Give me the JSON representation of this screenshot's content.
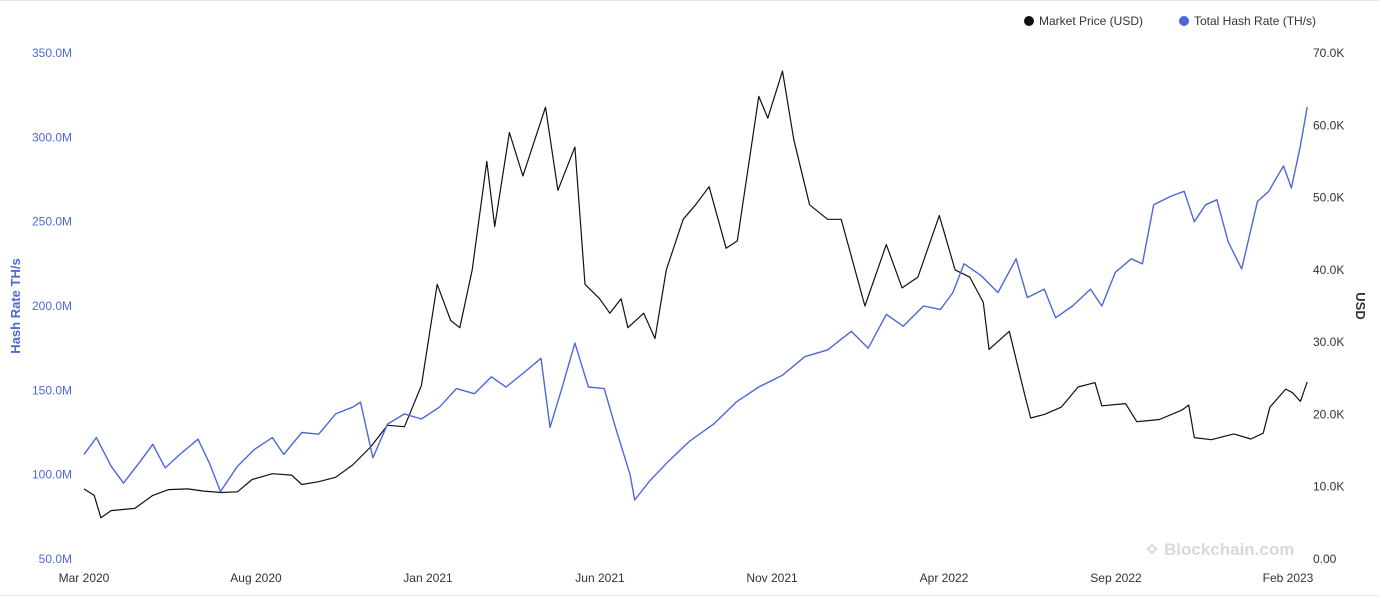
{
  "chart_data": {
    "type": "line",
    "x_ticks": [
      "Mar 2020",
      "Aug 2020",
      "Jan 2021",
      "Jun 2021",
      "Nov 2021",
      "Apr 2022",
      "Sep 2022",
      "Feb 2023"
    ],
    "y_left": {
      "label": "Hash Rate TH/s",
      "ticks": [
        "50.0M",
        "100.0M",
        "150.0M",
        "200.0M",
        "250.0M",
        "300.0M",
        "350.0M"
      ],
      "range": [
        50000000,
        350000000
      ]
    },
    "y_right": {
      "label": "USD",
      "ticks": [
        "0.00",
        "10.0K",
        "20.0K",
        "30.0K",
        "40.0K",
        "50.0K",
        "60.0K",
        "70.0K"
      ],
      "range": [
        0,
        70000
      ]
    },
    "legend": {
      "position": "top-right"
    },
    "series": [
      {
        "name": "Market Price (USD)",
        "axis": "right",
        "color": "#111111",
        "points": [
          [
            "2020-03-01",
            9700
          ],
          [
            "2020-03-10",
            8800
          ],
          [
            "2020-03-16",
            5700
          ],
          [
            "2020-03-25",
            6700
          ],
          [
            "2020-04-15",
            7000
          ],
          [
            "2020-05-01",
            8800
          ],
          [
            "2020-05-15",
            9600
          ],
          [
            "2020-06-01",
            9700
          ],
          [
            "2020-06-15",
            9400
          ],
          [
            "2020-07-01",
            9200
          ],
          [
            "2020-07-15",
            9300
          ],
          [
            "2020-07-28",
            11000
          ],
          [
            "2020-08-15",
            11800
          ],
          [
            "2020-09-01",
            11600
          ],
          [
            "2020-09-10",
            10300
          ],
          [
            "2020-09-25",
            10700
          ],
          [
            "2020-10-10",
            11300
          ],
          [
            "2020-10-25",
            13000
          ],
          [
            "2020-11-10",
            15500
          ],
          [
            "2020-11-25",
            18500
          ],
          [
            "2020-12-10",
            18300
          ],
          [
            "2020-12-25",
            24000
          ],
          [
            "2021-01-08",
            38000
          ],
          [
            "2021-01-20",
            33000
          ],
          [
            "2021-01-28",
            32000
          ],
          [
            "2021-02-08",
            40000
          ],
          [
            "2021-02-21",
            55000
          ],
          [
            "2021-02-28",
            46000
          ],
          [
            "2021-03-13",
            59000
          ],
          [
            "2021-03-25",
            53000
          ],
          [
            "2021-04-14",
            62500
          ],
          [
            "2021-04-25",
            51000
          ],
          [
            "2021-05-10",
            57000
          ],
          [
            "2021-05-19",
            38000
          ],
          [
            "2021-06-01",
            36000
          ],
          [
            "2021-06-10",
            34000
          ],
          [
            "2021-06-20",
            36000
          ],
          [
            "2021-06-26",
            32000
          ],
          [
            "2021-07-10",
            34000
          ],
          [
            "2021-07-20",
            30500
          ],
          [
            "2021-07-30",
            40000
          ],
          [
            "2021-08-14",
            47000
          ],
          [
            "2021-08-25",
            49000
          ],
          [
            "2021-09-06",
            51500
          ],
          [
            "2021-09-21",
            43000
          ],
          [
            "2021-10-01",
            44000
          ],
          [
            "2021-10-20",
            64000
          ],
          [
            "2021-10-28",
            61000
          ],
          [
            "2021-11-10",
            67500
          ],
          [
            "2021-11-20",
            58000
          ],
          [
            "2021-12-04",
            49000
          ],
          [
            "2021-12-20",
            47000
          ],
          [
            "2022-01-01",
            47000
          ],
          [
            "2022-01-22",
            35000
          ],
          [
            "2022-02-10",
            43500
          ],
          [
            "2022-02-24",
            37500
          ],
          [
            "2022-03-10",
            39000
          ],
          [
            "2022-03-29",
            47500
          ],
          [
            "2022-04-12",
            40000
          ],
          [
            "2022-04-25",
            39000
          ],
          [
            "2022-05-07",
            35500
          ],
          [
            "2022-05-12",
            29000
          ],
          [
            "2022-05-30",
            31500
          ],
          [
            "2022-06-13",
            22500
          ],
          [
            "2022-06-18",
            19500
          ],
          [
            "2022-06-30",
            20000
          ],
          [
            "2022-07-15",
            21000
          ],
          [
            "2022-07-30",
            23800
          ],
          [
            "2022-08-14",
            24400
          ],
          [
            "2022-08-20",
            21200
          ],
          [
            "2022-09-10",
            21500
          ],
          [
            "2022-09-20",
            19000
          ],
          [
            "2022-10-10",
            19300
          ],
          [
            "2022-10-30",
            20600
          ],
          [
            "2022-11-05",
            21300
          ],
          [
            "2022-11-10",
            16800
          ],
          [
            "2022-11-25",
            16500
          ],
          [
            "2022-12-15",
            17300
          ],
          [
            "2022-12-30",
            16600
          ],
          [
            "2023-01-10",
            17400
          ],
          [
            "2023-01-16",
            21000
          ],
          [
            "2023-01-30",
            23500
          ],
          [
            "2023-02-05",
            23000
          ],
          [
            "2023-02-12",
            21800
          ],
          [
            "2023-02-18",
            24500
          ]
        ]
      },
      {
        "name": "Total Hash Rate (TH/s)",
        "axis": "left",
        "color": "#4d68d8",
        "points": [
          [
            "2020-03-01",
            112000000
          ],
          [
            "2020-03-12",
            122000000
          ],
          [
            "2020-03-25",
            105000000
          ],
          [
            "2020-04-05",
            95000000
          ],
          [
            "2020-04-20",
            108000000
          ],
          [
            "2020-05-01",
            118000000
          ],
          [
            "2020-05-12",
            104000000
          ],
          [
            "2020-05-25",
            112000000
          ],
          [
            "2020-06-10",
            121000000
          ],
          [
            "2020-06-20",
            107000000
          ],
          [
            "2020-06-30",
            90000000
          ],
          [
            "2020-07-15",
            105000000
          ],
          [
            "2020-07-30",
            115000000
          ],
          [
            "2020-08-15",
            122000000
          ],
          [
            "2020-08-25",
            112000000
          ],
          [
            "2020-09-10",
            125000000
          ],
          [
            "2020-09-25",
            124000000
          ],
          [
            "2020-10-10",
            136000000
          ],
          [
            "2020-10-25",
            140000000
          ],
          [
            "2020-11-01",
            143000000
          ],
          [
            "2020-11-12",
            110000000
          ],
          [
            "2020-11-25",
            130000000
          ],
          [
            "2020-12-10",
            136000000
          ],
          [
            "2020-12-25",
            133000000
          ],
          [
            "2021-01-10",
            140000000
          ],
          [
            "2021-01-25",
            151000000
          ],
          [
            "2021-02-10",
            148000000
          ],
          [
            "2021-02-25",
            158000000
          ],
          [
            "2021-03-10",
            152000000
          ],
          [
            "2021-03-25",
            160000000
          ],
          [
            "2021-04-10",
            169000000
          ],
          [
            "2021-04-18",
            128000000
          ],
          [
            "2021-04-28",
            150000000
          ],
          [
            "2021-05-10",
            178000000
          ],
          [
            "2021-05-22",
            152000000
          ],
          [
            "2021-06-05",
            151000000
          ],
          [
            "2021-06-15",
            128000000
          ],
          [
            "2021-06-28",
            100000000
          ],
          [
            "2021-07-02",
            85000000
          ],
          [
            "2021-07-15",
            96000000
          ],
          [
            "2021-08-01",
            108000000
          ],
          [
            "2021-08-20",
            120000000
          ],
          [
            "2021-09-10",
            130000000
          ],
          [
            "2021-09-30",
            143000000
          ],
          [
            "2021-10-20",
            152000000
          ],
          [
            "2021-11-10",
            159000000
          ],
          [
            "2021-11-30",
            170000000
          ],
          [
            "2021-12-20",
            174000000
          ],
          [
            "2022-01-10",
            185000000
          ],
          [
            "2022-01-25",
            175000000
          ],
          [
            "2022-02-10",
            195000000
          ],
          [
            "2022-02-25",
            188000000
          ],
          [
            "2022-03-15",
            200000000
          ],
          [
            "2022-03-30",
            198000000
          ],
          [
            "2022-04-10",
            208000000
          ],
          [
            "2022-04-20",
            225000000
          ],
          [
            "2022-05-05",
            218000000
          ],
          [
            "2022-05-20",
            208000000
          ],
          [
            "2022-06-05",
            228000000
          ],
          [
            "2022-06-15",
            205000000
          ],
          [
            "2022-06-30",
            210000000
          ],
          [
            "2022-07-10",
            193000000
          ],
          [
            "2022-07-25",
            200000000
          ],
          [
            "2022-08-10",
            210000000
          ],
          [
            "2022-08-20",
            200000000
          ],
          [
            "2022-09-01",
            220000000
          ],
          [
            "2022-09-15",
            228000000
          ],
          [
            "2022-09-25",
            225000000
          ],
          [
            "2022-10-05",
            260000000
          ],
          [
            "2022-10-20",
            265000000
          ],
          [
            "2022-11-01",
            268000000
          ],
          [
            "2022-11-10",
            250000000
          ],
          [
            "2022-11-20",
            260000000
          ],
          [
            "2022-11-30",
            263000000
          ],
          [
            "2022-12-10",
            238000000
          ],
          [
            "2022-12-22",
            222000000
          ],
          [
            "2023-01-05",
            262000000
          ],
          [
            "2023-01-15",
            268000000
          ],
          [
            "2023-01-20",
            274000000
          ],
          [
            "2023-01-28",
            283000000
          ],
          [
            "2023-02-04",
            270000000
          ],
          [
            "2023-02-12",
            295000000
          ],
          [
            "2023-02-18",
            318000000
          ]
        ]
      }
    ],
    "watermark": "Blockchain.com"
  }
}
